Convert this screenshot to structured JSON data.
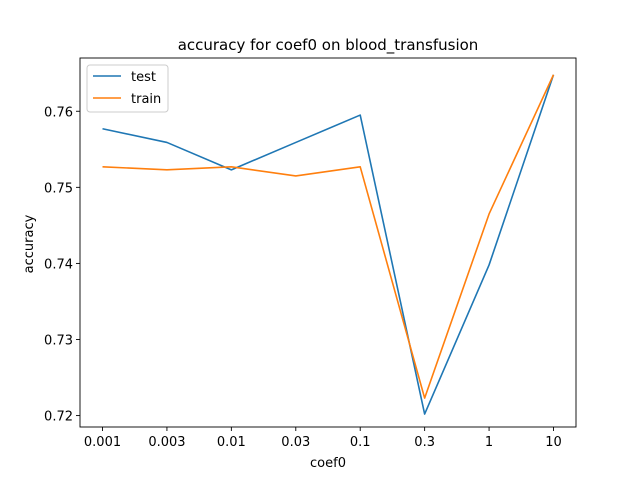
{
  "chart_data": {
    "type": "line",
    "title": "accuracy for coef0 on  blood_transfusion",
    "xlabel": "coef0",
    "ylabel": "accuracy",
    "categories": [
      "0.001",
      "0.003",
      "0.01",
      "0.03",
      "0.1",
      "0.3",
      "1",
      "10"
    ],
    "ylim": [
      0.7185,
      0.767
    ],
    "yticks": [
      "0.72",
      "0.73",
      "0.74",
      "0.75",
      "0.76"
    ],
    "ytick_values": [
      0.72,
      0.73,
      0.74,
      0.75,
      0.76
    ],
    "legend_position": "top-left",
    "grid": false,
    "series": [
      {
        "name": "test",
        "color": "#1f77b4",
        "values": [
          0.7577,
          0.7559,
          0.7523,
          0.7559,
          0.7595,
          0.7202,
          0.7398,
          0.7648
        ]
      },
      {
        "name": "train",
        "color": "#ff7f0e",
        "values": [
          0.7527,
          0.7523,
          0.7527,
          0.7515,
          0.7527,
          0.7223,
          0.7465,
          0.7648
        ]
      }
    ]
  }
}
